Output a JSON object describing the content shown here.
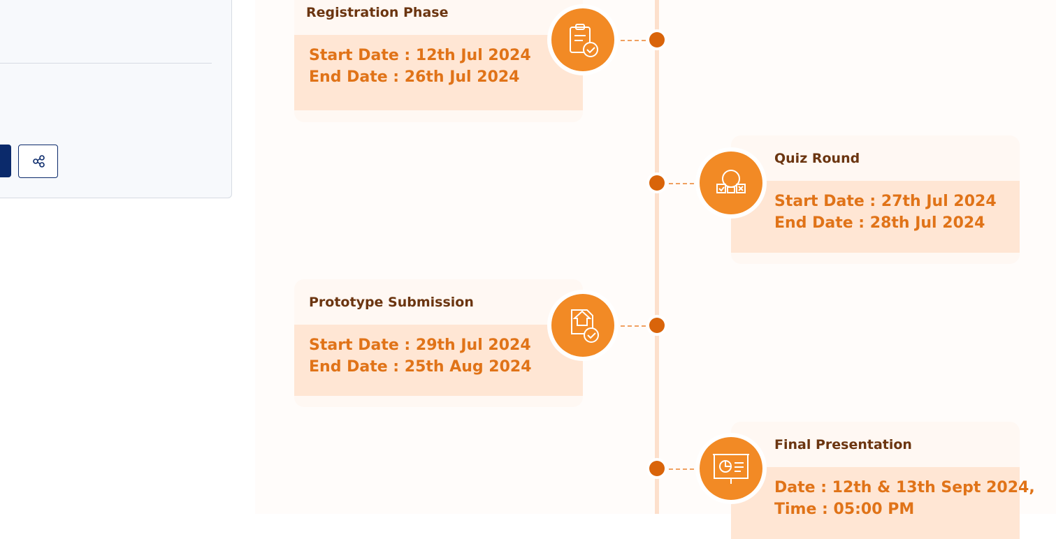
{
  "timeline": [
    {
      "title": "Registration Phase",
      "lines": [
        "Start Date : 12th Jul 2024",
        "End Date : 26th Jul 2024"
      ]
    },
    {
      "title": "Quiz Round",
      "lines": [
        "Start Date : 27th Jul 2024",
        "End Date : 28th Jul 2024"
      ]
    },
    {
      "title": "Prototype Submission",
      "lines": [
        "Start Date : 29th Jul 2024",
        "End Date : 25th Aug 2024"
      ]
    },
    {
      "title": "Final Presentation",
      "lines": [
        "Date : 12th & 13th Sept 2024,",
        "Time : 05:00 PM"
      ]
    }
  ]
}
